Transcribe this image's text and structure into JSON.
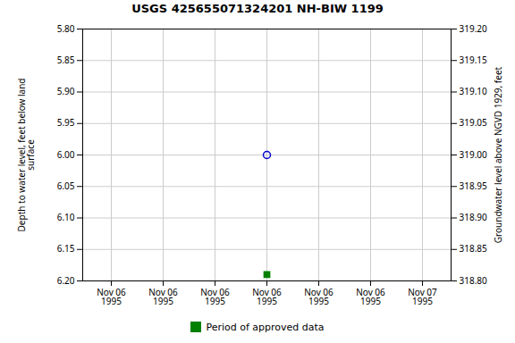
{
  "chart_data": {
    "type": "scatter",
    "title": "USGS 425655071324201 NH-BIW 1199",
    "categories": [
      "Nov 06\n1995",
      "Nov 06\n1995",
      "Nov 06\n1995",
      "Nov 06\n1995",
      "Nov 06\n1995",
      "Nov 06\n1995",
      "Nov 07\n1995"
    ],
    "ylabel": "Depth to water level, feet below land\nsurface",
    "y2label": "Groundwater level above NGVD 1929, feet",
    "ylim": [
      6.2,
      5.8
    ],
    "yticks": [
      {
        "value": 5.8,
        "label": "5.80"
      },
      {
        "value": 5.85,
        "label": "5.85"
      },
      {
        "value": 5.9,
        "label": "5.90"
      },
      {
        "value": 5.95,
        "label": "5.95"
      },
      {
        "value": 6.0,
        "label": "6.00"
      },
      {
        "value": 6.05,
        "label": "6.05"
      },
      {
        "value": 6.1,
        "label": "6.10"
      },
      {
        "value": 6.15,
        "label": "6.15"
      },
      {
        "value": 6.2,
        "label": "6.20"
      }
    ],
    "y2lim": [
      318.8,
      319.2
    ],
    "y2ticks": [
      {
        "value": 319.2,
        "label": "319.20"
      },
      {
        "value": 319.15,
        "label": "319.15"
      },
      {
        "value": 319.1,
        "label": "319.10"
      },
      {
        "value": 319.05,
        "label": "319.05"
      },
      {
        "value": 319.0,
        "label": "319.00"
      },
      {
        "value": 318.95,
        "label": "318.95"
      },
      {
        "value": 318.9,
        "label": "318.90"
      },
      {
        "value": 318.85,
        "label": "318.85"
      },
      {
        "value": 318.8,
        "label": "318.80"
      }
    ],
    "grid": true,
    "legend": "bottom",
    "series": [
      {
        "color": "#0000cc",
        "marker": "ring",
        "values": [
          null,
          null,
          null,
          6.0,
          null,
          null,
          null
        ]
      },
      {
        "name": "Period of approved data",
        "color": "#008000",
        "marker": "square",
        "values": [
          null,
          null,
          null,
          6.19,
          null,
          null,
          null
        ]
      }
    ]
  }
}
